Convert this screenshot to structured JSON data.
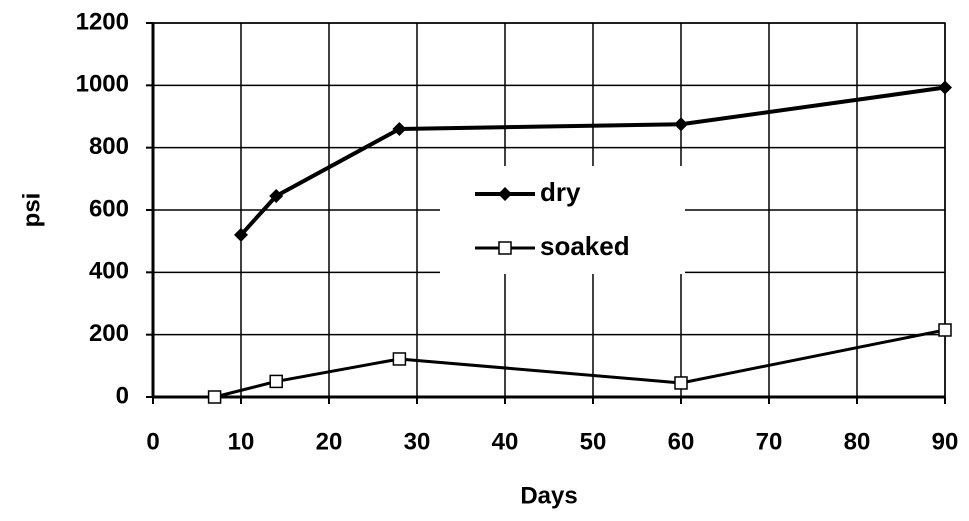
{
  "chart_data": {
    "type": "line",
    "x_label": "Days",
    "y_label": "psi",
    "xlim": [
      0,
      90
    ],
    "xticks": [
      0,
      10,
      20,
      30,
      40,
      50,
      60,
      70,
      80,
      90
    ],
    "ylim": [
      0,
      1200
    ],
    "yticks": [
      0,
      200,
      400,
      600,
      800,
      1000,
      1200
    ],
    "grid": true,
    "legend": "center",
    "series": [
      {
        "name": "dry",
        "color": "#000000",
        "marker": "diamond",
        "x": [
          10,
          14,
          28,
          60,
          90
        ],
        "values": [
          520,
          645,
          860,
          875,
          993
        ]
      },
      {
        "name": "soaked",
        "color": "#000000",
        "marker": "square",
        "x": [
          7,
          14,
          28,
          60,
          90
        ],
        "values": [
          0,
          50,
          122,
          45,
          215
        ]
      }
    ]
  }
}
